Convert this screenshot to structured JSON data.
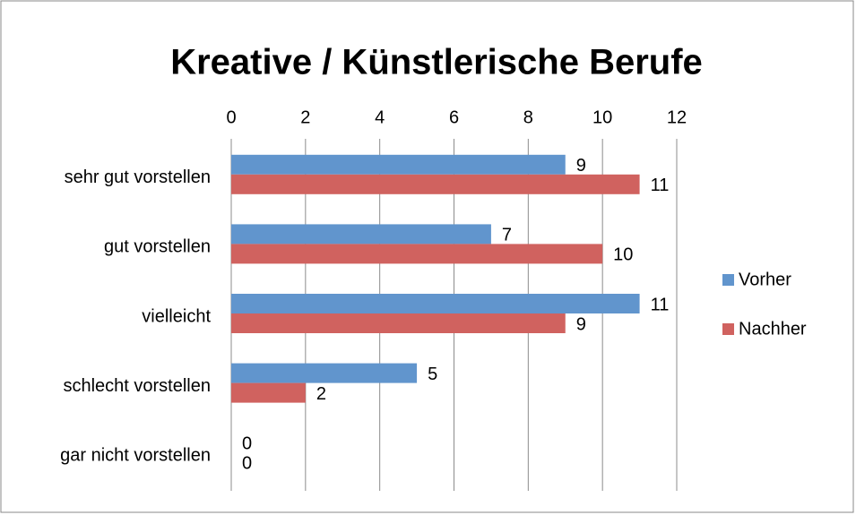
{
  "chart_data": {
    "type": "bar",
    "orientation": "horizontal",
    "title": "Kreative / Künstlerische Berufe",
    "categories": [
      "sehr gut vorstellen",
      "gut vorstellen",
      "vielleicht",
      "schlecht vorstellen",
      "gar nicht vorstellen"
    ],
    "series": [
      {
        "name": "Vorher",
        "color": "#6195cd",
        "values": [
          9,
          7,
          11,
          5,
          0
        ]
      },
      {
        "name": "Nachher",
        "color": "#d0625f",
        "values": [
          11,
          10,
          9,
          2,
          0
        ]
      }
    ],
    "xlim": [
      0,
      12
    ],
    "xticks": [
      0,
      2,
      4,
      6,
      8,
      10,
      12
    ],
    "grid": true,
    "legend": "right"
  }
}
